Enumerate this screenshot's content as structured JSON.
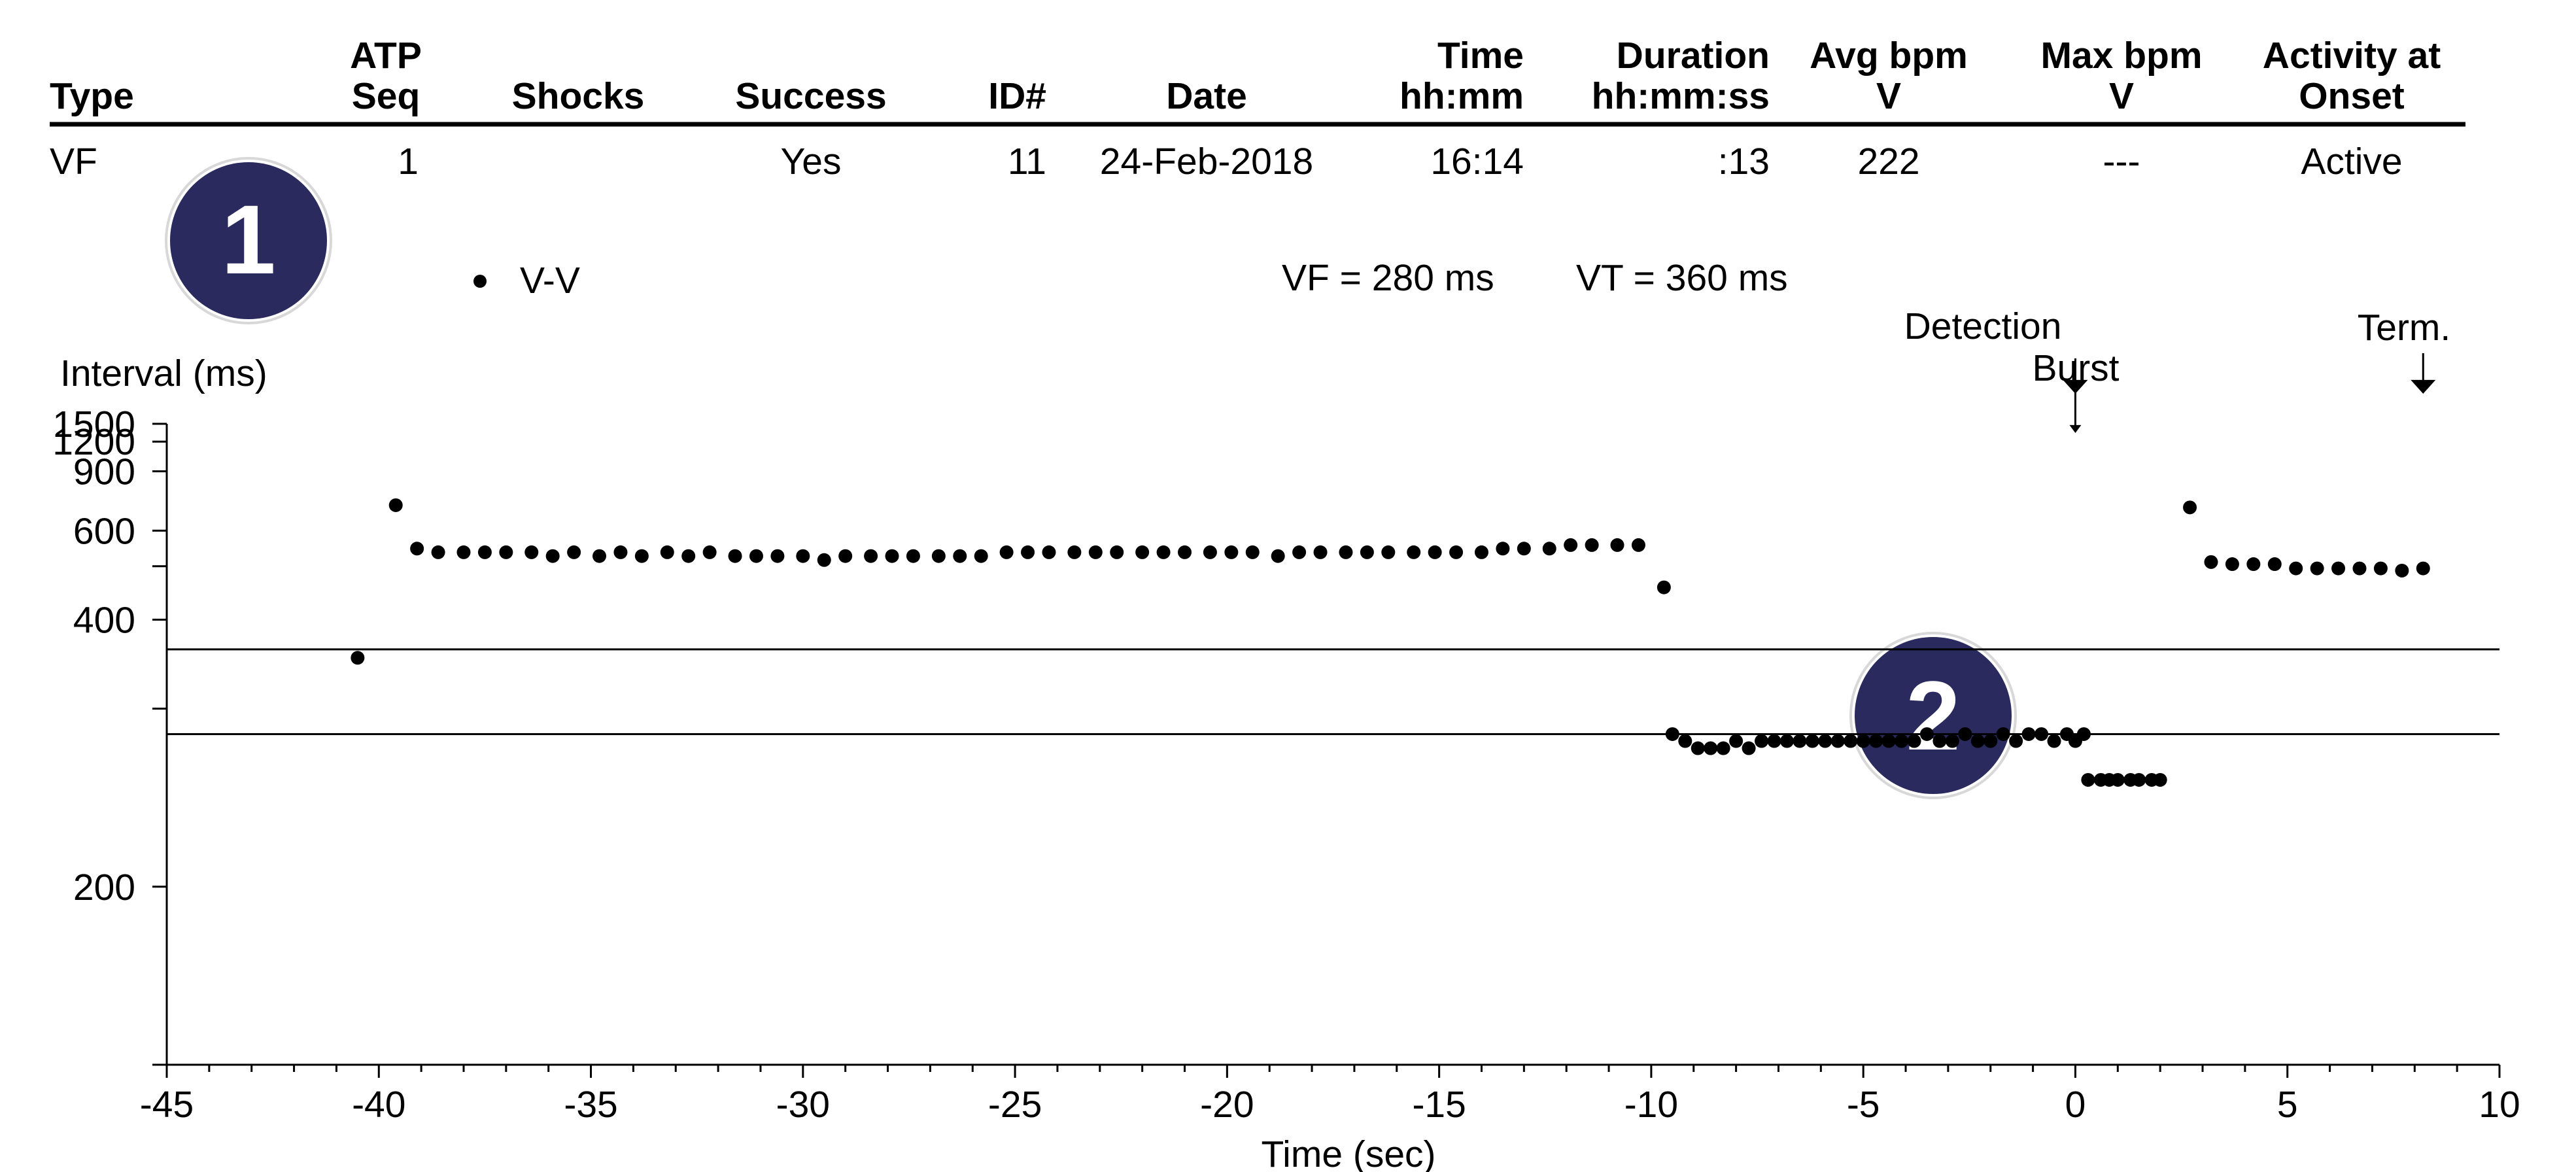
{
  "table": {
    "headers": [
      {
        "line1": "",
        "line2": "Type"
      },
      {
        "line1": "ATP",
        "line2": "Seq"
      },
      {
        "line1": "",
        "line2": "Shocks"
      },
      {
        "line1": "",
        "line2": "Success"
      },
      {
        "line1": "",
        "line2": "ID#"
      },
      {
        "line1": "",
        "line2": "Date"
      },
      {
        "line1": "Time",
        "line2": "hh:mm"
      },
      {
        "line1": "Duration",
        "line2": "hh:mm:ss"
      },
      {
        "line1": "Avg bpm",
        "line2": "V"
      },
      {
        "line1": "Max bpm",
        "line2": "V"
      },
      {
        "line1": "Activity at",
        "line2": "Onset"
      }
    ],
    "row": [
      "VF",
      "1",
      "",
      "Yes",
      "11",
      "24-Feb-2018",
      "16:14",
      ":13",
      "222",
      "---",
      "Active"
    ]
  },
  "badges": [
    "1",
    "2"
  ],
  "colors": {
    "badge_fill": "#2a2a5e",
    "badge_text": "#ffffff",
    "ink": "#000000"
  },
  "chart_data": {
    "type": "scatter",
    "legend": "V-V",
    "zone_labels": [
      "VF = 280 ms",
      "VT = 360 ms"
    ],
    "zone_thresholds_ms": [
      280,
      360
    ],
    "ylabel": "Interval (ms)",
    "xlabel": "Time (sec)",
    "xlim": [
      -45,
      10
    ],
    "x_ticks": [
      "-45",
      "-40",
      "-35",
      "-30",
      "-25",
      "-20",
      "-15",
      "-10",
      "-5",
      "0",
      "5",
      "10"
    ],
    "y_scale": "reciprocal",
    "ylim": [
      1500,
      150
    ],
    "y_ticks": [
      "1500",
      "1200",
      "900",
      "600",
      "",
      "400",
      "",
      "200",
      ""
    ],
    "y_tick_values": [
      1500,
      1200,
      900,
      600,
      500,
      400,
      300,
      200,
      150
    ],
    "markers": [
      {
        "label": "Detection",
        "x": 0
      },
      {
        "label": "Burst",
        "x": 0
      },
      {
        "label": "Term.",
        "x": 8.2
      }
    ],
    "series": [
      {
        "points": [
          [
            -40.5,
            350
          ],
          [
            -39.6,
            700
          ],
          [
            -39.1,
            545
          ],
          [
            -38.6,
            535
          ],
          [
            -38.0,
            535
          ],
          [
            -37.5,
            535
          ],
          [
            -37.0,
            535
          ],
          [
            -36.4,
            535
          ],
          [
            -35.9,
            525
          ],
          [
            -35.4,
            535
          ],
          [
            -34.8,
            525
          ],
          [
            -34.3,
            535
          ],
          [
            -33.8,
            525
          ],
          [
            -33.2,
            535
          ],
          [
            -32.7,
            525
          ],
          [
            -32.2,
            535
          ],
          [
            -31.6,
            525
          ],
          [
            -31.1,
            525
          ],
          [
            -30.6,
            525
          ],
          [
            -30.0,
            525
          ],
          [
            -29.5,
            515
          ],
          [
            -29.0,
            525
          ],
          [
            -28.4,
            525
          ],
          [
            -27.9,
            525
          ],
          [
            -27.4,
            525
          ],
          [
            -26.8,
            525
          ],
          [
            -26.3,
            525
          ],
          [
            -25.8,
            525
          ],
          [
            -25.2,
            535
          ],
          [
            -24.7,
            535
          ],
          [
            -24.2,
            535
          ],
          [
            -23.6,
            535
          ],
          [
            -23.1,
            535
          ],
          [
            -22.6,
            535
          ],
          [
            -22.0,
            535
          ],
          [
            -21.5,
            535
          ],
          [
            -21.0,
            535
          ],
          [
            -20.4,
            535
          ],
          [
            -19.9,
            535
          ],
          [
            -19.4,
            535
          ],
          [
            -18.8,
            525
          ],
          [
            -18.3,
            535
          ],
          [
            -17.8,
            535
          ],
          [
            -17.2,
            535
          ],
          [
            -16.7,
            535
          ],
          [
            -16.2,
            535
          ],
          [
            -15.6,
            535
          ],
          [
            -15.1,
            535
          ],
          [
            -14.6,
            535
          ],
          [
            -14.0,
            535
          ],
          [
            -13.5,
            545
          ],
          [
            -13.0,
            545
          ],
          [
            -12.4,
            545
          ],
          [
            -11.9,
            555
          ],
          [
            -11.4,
            555
          ],
          [
            -10.8,
            555
          ],
          [
            -10.3,
            555
          ],
          [
            -9.7,
            455
          ],
          [
            -9.5,
            280
          ],
          [
            -9.2,
            275
          ],
          [
            -8.9,
            270
          ],
          [
            -8.6,
            270
          ],
          [
            -8.3,
            270
          ],
          [
            -8.0,
            275
          ],
          [
            -7.7,
            270
          ],
          [
            -7.4,
            275
          ],
          [
            -7.1,
            275
          ],
          [
            -6.8,
            275
          ],
          [
            -6.5,
            275
          ],
          [
            -6.2,
            275
          ],
          [
            -5.9,
            275
          ],
          [
            -5.6,
            275
          ],
          [
            -5.3,
            275
          ],
          [
            -5.0,
            275
          ],
          [
            -4.7,
            275
          ],
          [
            -4.4,
            275
          ],
          [
            -4.1,
            275
          ],
          [
            -3.8,
            275
          ],
          [
            -3.5,
            280
          ],
          [
            -3.2,
            275
          ],
          [
            -2.9,
            275
          ],
          [
            -2.6,
            280
          ],
          [
            -2.3,
            275
          ],
          [
            -2.0,
            275
          ],
          [
            -1.7,
            280
          ],
          [
            -1.4,
            275
          ],
          [
            -1.1,
            280
          ],
          [
            -0.8,
            280
          ],
          [
            -0.5,
            275
          ],
          [
            -0.2,
            280
          ],
          [
            0.0,
            275
          ],
          [
            0.2,
            280
          ],
          [
            0.3,
            250
          ],
          [
            0.6,
            250
          ],
          [
            0.8,
            250
          ],
          [
            1.0,
            250
          ],
          [
            1.3,
            250
          ],
          [
            1.5,
            250
          ],
          [
            1.8,
            250
          ],
          [
            2.0,
            250
          ],
          [
            2.7,
            690
          ],
          [
            3.2,
            510
          ],
          [
            3.7,
            505
          ],
          [
            4.2,
            505
          ],
          [
            4.7,
            505
          ],
          [
            5.2,
            495
          ],
          [
            5.7,
            495
          ],
          [
            6.2,
            495
          ],
          [
            6.7,
            495
          ],
          [
            7.2,
            495
          ],
          [
            7.7,
            490
          ],
          [
            8.2,
            495
          ]
        ]
      }
    ]
  }
}
